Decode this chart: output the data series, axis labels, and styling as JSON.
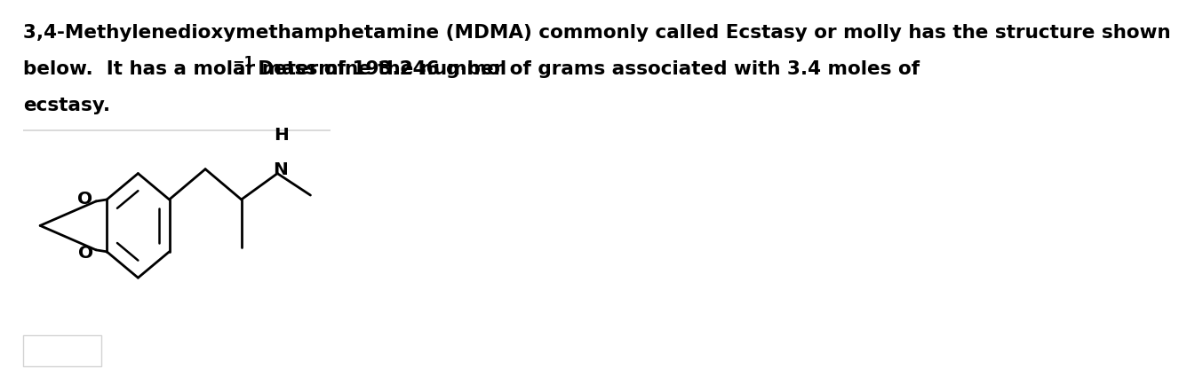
{
  "background_color": "#ffffff",
  "text_line1": "3,4-Methylenedioxymethamphetamine (MDMA) commonly called Ecstasy or molly has the structure shown",
  "text_line2": "below.  It has a molar mass of 193.246 g·mol",
  "text_superscript": "−1",
  "text_line2_after": ".  Determine the number of grams associated with 3.4 moles of",
  "text_line3": "ecstasy.",
  "font_size_text": 15.5,
  "font_family": "Arial",
  "font_weight": "bold"
}
